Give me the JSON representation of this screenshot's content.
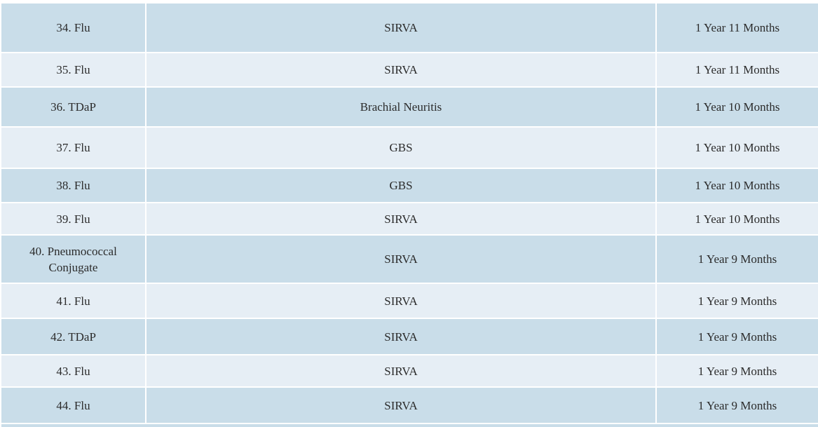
{
  "table": {
    "rows": [
      [
        "34. Flu",
        "SIRVA",
        "1 Year 11 Months"
      ],
      [
        "35. Flu",
        "SIRVA",
        "1 Year 11 Months"
      ],
      [
        "36. TDaP",
        "Brachial Neuritis",
        "1 Year 10 Months"
      ],
      [
        "37. Flu",
        "GBS",
        "1 Year 10 Months"
      ],
      [
        "38. Flu",
        "GBS",
        "1 Year 10 Months"
      ],
      [
        "39. Flu",
        "SIRVA",
        "1 Year 10 Months"
      ],
      [
        "40. Pneumococcal Conjugate",
        "SIRVA",
        "1 Year 9 Months"
      ],
      [
        "41. Flu",
        "SIRVA",
        "1 Year 9 Months"
      ],
      [
        "42. TDaP",
        "SIRVA",
        "1 Year 9 Months"
      ],
      [
        "43. Flu",
        "SIRVA",
        "1 Year 9 Months"
      ],
      [
        "44. Flu",
        "SIRVA",
        "1 Year 9 Months"
      ]
    ]
  }
}
